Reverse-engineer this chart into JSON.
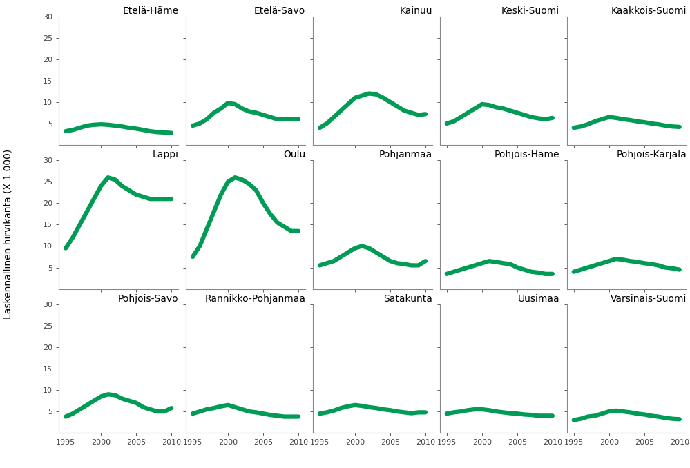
{
  "regions": [
    "Etelä-Häme",
    "Etelä-Savo",
    "Kainuu",
    "Keski-Suomi",
    "Kaakkois-Suomi",
    "Lappi",
    "Oulu",
    "Pohjanmaa",
    "Pohjois-Häme",
    "Pohjois-Karjala",
    "Pohjois-Savo",
    "Rannikko-Pohjanmaa",
    "Satakunta",
    "Uusimaa",
    "Varsinais-Suomi"
  ],
  "years": [
    1995,
    1996,
    1997,
    1998,
    1999,
    2000,
    2001,
    2002,
    2003,
    2004,
    2005,
    2006,
    2007,
    2008,
    2009,
    2010
  ],
  "data": {
    "Etelä-Häme": [
      3.2,
      3.5,
      4.0,
      4.5,
      4.7,
      4.8,
      4.7,
      4.5,
      4.3,
      4.0,
      3.8,
      3.5,
      3.2,
      3.0,
      2.9,
      2.8
    ],
    "Etelä-Savo": [
      4.5,
      5.0,
      6.0,
      7.5,
      8.5,
      9.8,
      9.5,
      8.5,
      7.8,
      7.5,
      7.0,
      6.5,
      6.0,
      6.0,
      6.0,
      6.0
    ],
    "Kainuu": [
      4.0,
      5.0,
      6.5,
      8.0,
      9.5,
      11.0,
      11.5,
      12.0,
      11.8,
      11.0,
      10.0,
      9.0,
      8.0,
      7.5,
      7.0,
      7.2
    ],
    "Keski-Suomi": [
      5.0,
      5.5,
      6.5,
      7.5,
      8.5,
      9.5,
      9.3,
      8.8,
      8.5,
      8.0,
      7.5,
      7.0,
      6.5,
      6.2,
      6.0,
      6.3
    ],
    "Kaakkois-Suomi": [
      4.0,
      4.3,
      4.8,
      5.5,
      6.0,
      6.5,
      6.3,
      6.0,
      5.8,
      5.5,
      5.3,
      5.0,
      4.8,
      4.5,
      4.3,
      4.2
    ],
    "Lappi": [
      9.5,
      12.0,
      15.0,
      18.0,
      21.0,
      24.0,
      26.0,
      25.5,
      24.0,
      23.0,
      22.0,
      21.5,
      21.0,
      21.0,
      21.0,
      21.0
    ],
    "Oulu": [
      7.5,
      10.0,
      14.0,
      18.0,
      22.0,
      25.0,
      26.0,
      25.5,
      24.5,
      23.0,
      20.0,
      17.5,
      15.5,
      14.5,
      13.5,
      13.5
    ],
    "Pohjanmaa": [
      5.5,
      6.0,
      6.5,
      7.5,
      8.5,
      9.5,
      10.0,
      9.5,
      8.5,
      7.5,
      6.5,
      6.0,
      5.8,
      5.5,
      5.5,
      6.5
    ],
    "Pohjois-Häme": [
      3.5,
      4.0,
      4.5,
      5.0,
      5.5,
      6.0,
      6.5,
      6.3,
      6.0,
      5.8,
      5.0,
      4.5,
      4.0,
      3.8,
      3.5,
      3.5
    ],
    "Pohjois-Karjala": [
      4.0,
      4.5,
      5.0,
      5.5,
      6.0,
      6.5,
      7.0,
      6.8,
      6.5,
      6.3,
      6.0,
      5.8,
      5.5,
      5.0,
      4.8,
      4.5
    ],
    "Pohjois-Savo": [
      3.8,
      4.5,
      5.5,
      6.5,
      7.5,
      8.5,
      9.0,
      8.8,
      8.0,
      7.5,
      7.0,
      6.0,
      5.5,
      5.0,
      5.0,
      5.8
    ],
    "Rannikko-Pohjanmaa": [
      4.5,
      5.0,
      5.5,
      5.8,
      6.2,
      6.5,
      6.0,
      5.5,
      5.0,
      4.8,
      4.5,
      4.2,
      4.0,
      3.8,
      3.8,
      3.8
    ],
    "Satakunta": [
      4.5,
      4.8,
      5.2,
      5.8,
      6.2,
      6.5,
      6.3,
      6.0,
      5.8,
      5.5,
      5.3,
      5.0,
      4.8,
      4.6,
      4.8,
      4.8
    ],
    "Uusimaa": [
      4.5,
      4.8,
      5.0,
      5.3,
      5.5,
      5.5,
      5.3,
      5.0,
      4.8,
      4.6,
      4.5,
      4.3,
      4.2,
      4.0,
      4.0,
      4.0
    ],
    "Varsinais-Suomi": [
      3.0,
      3.3,
      3.8,
      4.0,
      4.5,
      5.0,
      5.2,
      5.0,
      4.8,
      4.5,
      4.3,
      4.0,
      3.8,
      3.5,
      3.3,
      3.2
    ]
  },
  "line_color": "#009B55",
  "line_width": 4.5,
  "ylabel": "Laskennallinen hirvikanta (X 1 000)",
  "ylim": [
    0,
    30
  ],
  "yticks": [
    5,
    10,
    15,
    20,
    25,
    30
  ],
  "xticks": [
    1995,
    2000,
    2005,
    2010
  ],
  "background_color": "#ffffff",
  "title_fontsize": 10,
  "tick_fontsize": 8,
  "ylabel_fontsize": 10,
  "grid": false
}
